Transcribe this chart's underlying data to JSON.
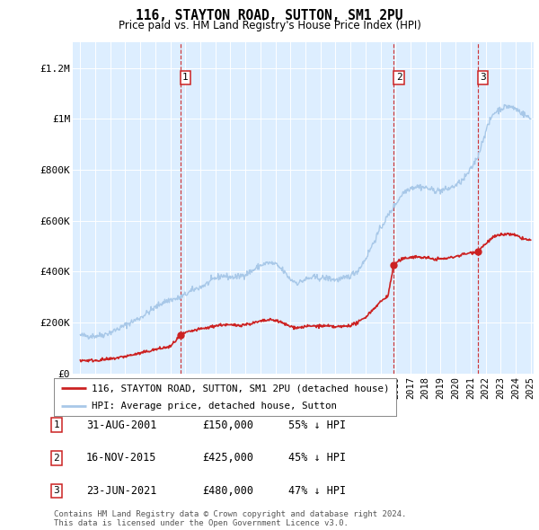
{
  "title": "116, STAYTON ROAD, SUTTON, SM1 2PU",
  "subtitle": "Price paid vs. HM Land Registry's House Price Index (HPI)",
  "legend_line1": "116, STAYTON ROAD, SUTTON, SM1 2PU (detached house)",
  "legend_line2": "HPI: Average price, detached house, Sutton",
  "table_rows": [
    {
      "num": 1,
      "date": "31-AUG-2001",
      "price": "£150,000",
      "pct": "55% ↓ HPI"
    },
    {
      "num": 2,
      "date": "16-NOV-2015",
      "price": "£425,000",
      "pct": "45% ↓ HPI"
    },
    {
      "num": 3,
      "date": "23-JUN-2021",
      "price": "£480,000",
      "pct": "47% ↓ HPI"
    }
  ],
  "footer": "Contains HM Land Registry data © Crown copyright and database right 2024.\nThis data is licensed under the Open Government Licence v3.0.",
  "sale_dates": [
    2001.66,
    2015.88,
    2021.47
  ],
  "sale_prices": [
    150000,
    425000,
    480000
  ],
  "hpi_color": "#a8c8e8",
  "price_color": "#cc2222",
  "vline_color": "#cc2222",
  "bg_color": "#ddeeff",
  "grid_color": "#ffffff",
  "ylim_max": 1300000,
  "xlim_min": 1994.5,
  "xlim_max": 2025.2
}
